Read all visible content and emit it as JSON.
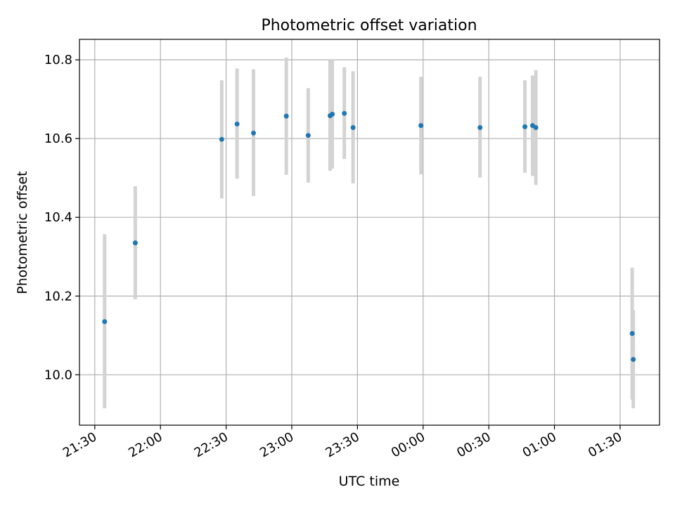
{
  "chart_data": {
    "type": "scatter",
    "title": "Photometric offset variation",
    "xlabel": "UTC time",
    "ylabel": "Photometric offset",
    "x_unit": "UTC time (HH:MM)",
    "xlim": [
      "21:23",
      "01:48"
    ],
    "ylim": [
      9.872,
      10.852
    ],
    "grid": true,
    "x_ticks": [
      "21:30",
      "22:00",
      "22:30",
      "23:00",
      "23:30",
      "00:00",
      "00:30",
      "01:00",
      "01:30"
    ],
    "y_ticks": [
      10.0,
      10.2,
      10.4,
      10.6,
      10.8
    ],
    "y_tick_labels": [
      "10.0",
      "10.2",
      "10.4",
      "10.6",
      "10.8"
    ],
    "marker_color": "#1f77b4",
    "errorbar_color": "#d3d3d3",
    "points": [
      {
        "time": "21:34:30",
        "y": 10.135,
        "y_low": 9.915,
        "y_high": 10.357
      },
      {
        "time": "21:48:30",
        "y": 10.335,
        "y_low": 10.192,
        "y_high": 10.479
      },
      {
        "time": "22:28:00",
        "y": 10.598,
        "y_low": 10.448,
        "y_high": 10.748
      },
      {
        "time": "22:35:00",
        "y": 10.637,
        "y_low": 10.498,
        "y_high": 10.778
      },
      {
        "time": "22:42:30",
        "y": 10.614,
        "y_low": 10.454,
        "y_high": 10.776
      },
      {
        "time": "22:57:30",
        "y": 10.657,
        "y_low": 10.508,
        "y_high": 10.806
      },
      {
        "time": "23:07:30",
        "y": 10.608,
        "y_low": 10.488,
        "y_high": 10.728
      },
      {
        "time": "23:17:30",
        "y": 10.658,
        "y_low": 10.518,
        "y_high": 10.799
      },
      {
        "time": "23:18:30",
        "y": 10.662,
        "y_low": 10.524,
        "y_high": 10.8
      },
      {
        "time": "23:24:00",
        "y": 10.664,
        "y_low": 10.548,
        "y_high": 10.781
      },
      {
        "time": "23:28:00",
        "y": 10.628,
        "y_low": 10.486,
        "y_high": 10.771
      },
      {
        "time": "23:59:00",
        "y": 10.633,
        "y_low": 10.509,
        "y_high": 10.757
      },
      {
        "time": "00:26:00",
        "y": 10.628,
        "y_low": 10.501,
        "y_high": 10.757
      },
      {
        "time": "00:46:30",
        "y": 10.63,
        "y_low": 10.513,
        "y_high": 10.748
      },
      {
        "time": "00:50:00",
        "y": 10.633,
        "y_low": 10.505,
        "y_high": 10.76
      },
      {
        "time": "00:51:30",
        "y": 10.628,
        "y_low": 10.482,
        "y_high": 10.774
      },
      {
        "time": "01:35:30",
        "y": 10.105,
        "y_low": 9.937,
        "y_high": 10.272
      },
      {
        "time": "01:36:00",
        "y": 10.039,
        "y_low": 9.915,
        "y_high": 10.164
      }
    ]
  }
}
